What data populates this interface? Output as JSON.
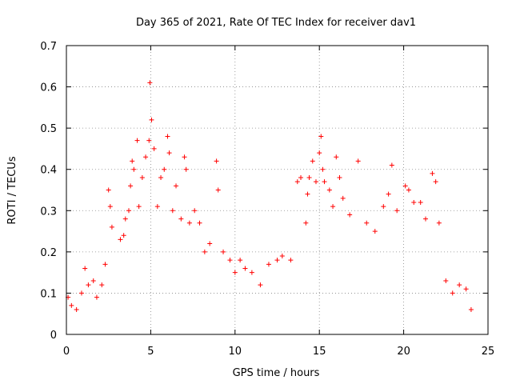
{
  "chart_data": {
    "type": "scatter",
    "title": "Day 365 of 2021, Rate Of TEC Index for receiver dav1",
    "xlabel": "GPS time / hours",
    "ylabel": "ROTI / TECUs",
    "xlim": [
      0,
      25
    ],
    "ylim": [
      0,
      0.7
    ],
    "x_ticks": [
      0,
      5,
      10,
      15,
      20,
      25
    ],
    "y_ticks": [
      0,
      0.1,
      0.2,
      0.3,
      0.4,
      0.5,
      0.6,
      0.7
    ],
    "x_tick_labels": [
      "0",
      "5",
      "10",
      "15",
      "20",
      "25"
    ],
    "y_tick_labels": [
      "0",
      "0.1",
      "0.2",
      "0.3",
      "0.4",
      "0.5",
      "0.6",
      "0.7"
    ],
    "grid": true,
    "marker": "plus",
    "marker_color": "#ff0000",
    "series": [
      {
        "points": [
          [
            0.1,
            0.09
          ],
          [
            0.3,
            0.07
          ],
          [
            0.6,
            0.06
          ],
          [
            0.9,
            0.1
          ],
          [
            1.1,
            0.16
          ],
          [
            1.3,
            0.12
          ],
          [
            1.6,
            0.13
          ],
          [
            1.8,
            0.09
          ],
          [
            2.1,
            0.12
          ],
          [
            2.3,
            0.17
          ],
          [
            2.5,
            0.35
          ],
          [
            2.6,
            0.31
          ],
          [
            2.7,
            0.26
          ],
          [
            3.2,
            0.23
          ],
          [
            3.4,
            0.24
          ],
          [
            3.5,
            0.28
          ],
          [
            3.7,
            0.3
          ],
          [
            3.8,
            0.36
          ],
          [
            3.9,
            0.42
          ],
          [
            4.0,
            0.4
          ],
          [
            4.2,
            0.47
          ],
          [
            4.3,
            0.31
          ],
          [
            4.5,
            0.38
          ],
          [
            4.7,
            0.43
          ],
          [
            4.9,
            0.47
          ],
          [
            4.95,
            0.61
          ],
          [
            5.05,
            0.52
          ],
          [
            5.2,
            0.45
          ],
          [
            5.4,
            0.31
          ],
          [
            5.6,
            0.38
          ],
          [
            5.8,
            0.4
          ],
          [
            6.0,
            0.48
          ],
          [
            6.1,
            0.44
          ],
          [
            6.3,
            0.3
          ],
          [
            6.5,
            0.36
          ],
          [
            6.8,
            0.28
          ],
          [
            7.0,
            0.43
          ],
          [
            7.1,
            0.4
          ],
          [
            7.3,
            0.27
          ],
          [
            7.6,
            0.3
          ],
          [
            7.9,
            0.27
          ],
          [
            8.2,
            0.2
          ],
          [
            8.5,
            0.22
          ],
          [
            8.9,
            0.42
          ],
          [
            9.0,
            0.35
          ],
          [
            9.3,
            0.2
          ],
          [
            9.7,
            0.18
          ],
          [
            10.0,
            0.15
          ],
          [
            10.3,
            0.18
          ],
          [
            10.6,
            0.16
          ],
          [
            11.0,
            0.15
          ],
          [
            11.5,
            0.12
          ],
          [
            12.0,
            0.17
          ],
          [
            12.5,
            0.18
          ],
          [
            12.8,
            0.19
          ],
          [
            13.3,
            0.18
          ],
          [
            13.7,
            0.37
          ],
          [
            13.9,
            0.38
          ],
          [
            14.2,
            0.27
          ],
          [
            14.3,
            0.34
          ],
          [
            14.4,
            0.38
          ],
          [
            14.6,
            0.42
          ],
          [
            14.8,
            0.37
          ],
          [
            15.0,
            0.44
          ],
          [
            15.1,
            0.48
          ],
          [
            15.2,
            0.4
          ],
          [
            15.3,
            0.37
          ],
          [
            15.6,
            0.35
          ],
          [
            15.8,
            0.31
          ],
          [
            16.0,
            0.43
          ],
          [
            16.2,
            0.38
          ],
          [
            16.4,
            0.33
          ],
          [
            16.8,
            0.29
          ],
          [
            17.3,
            0.42
          ],
          [
            17.8,
            0.27
          ],
          [
            18.3,
            0.25
          ],
          [
            18.8,
            0.31
          ],
          [
            19.1,
            0.34
          ],
          [
            19.3,
            0.41
          ],
          [
            19.6,
            0.3
          ],
          [
            20.1,
            0.36
          ],
          [
            20.3,
            0.35
          ],
          [
            20.6,
            0.32
          ],
          [
            21.0,
            0.32
          ],
          [
            21.3,
            0.28
          ],
          [
            21.7,
            0.39
          ],
          [
            21.9,
            0.37
          ],
          [
            22.1,
            0.27
          ],
          [
            22.5,
            0.13
          ],
          [
            22.9,
            0.1
          ],
          [
            23.3,
            0.12
          ],
          [
            23.7,
            0.11
          ],
          [
            24.0,
            0.06
          ]
        ]
      }
    ]
  }
}
